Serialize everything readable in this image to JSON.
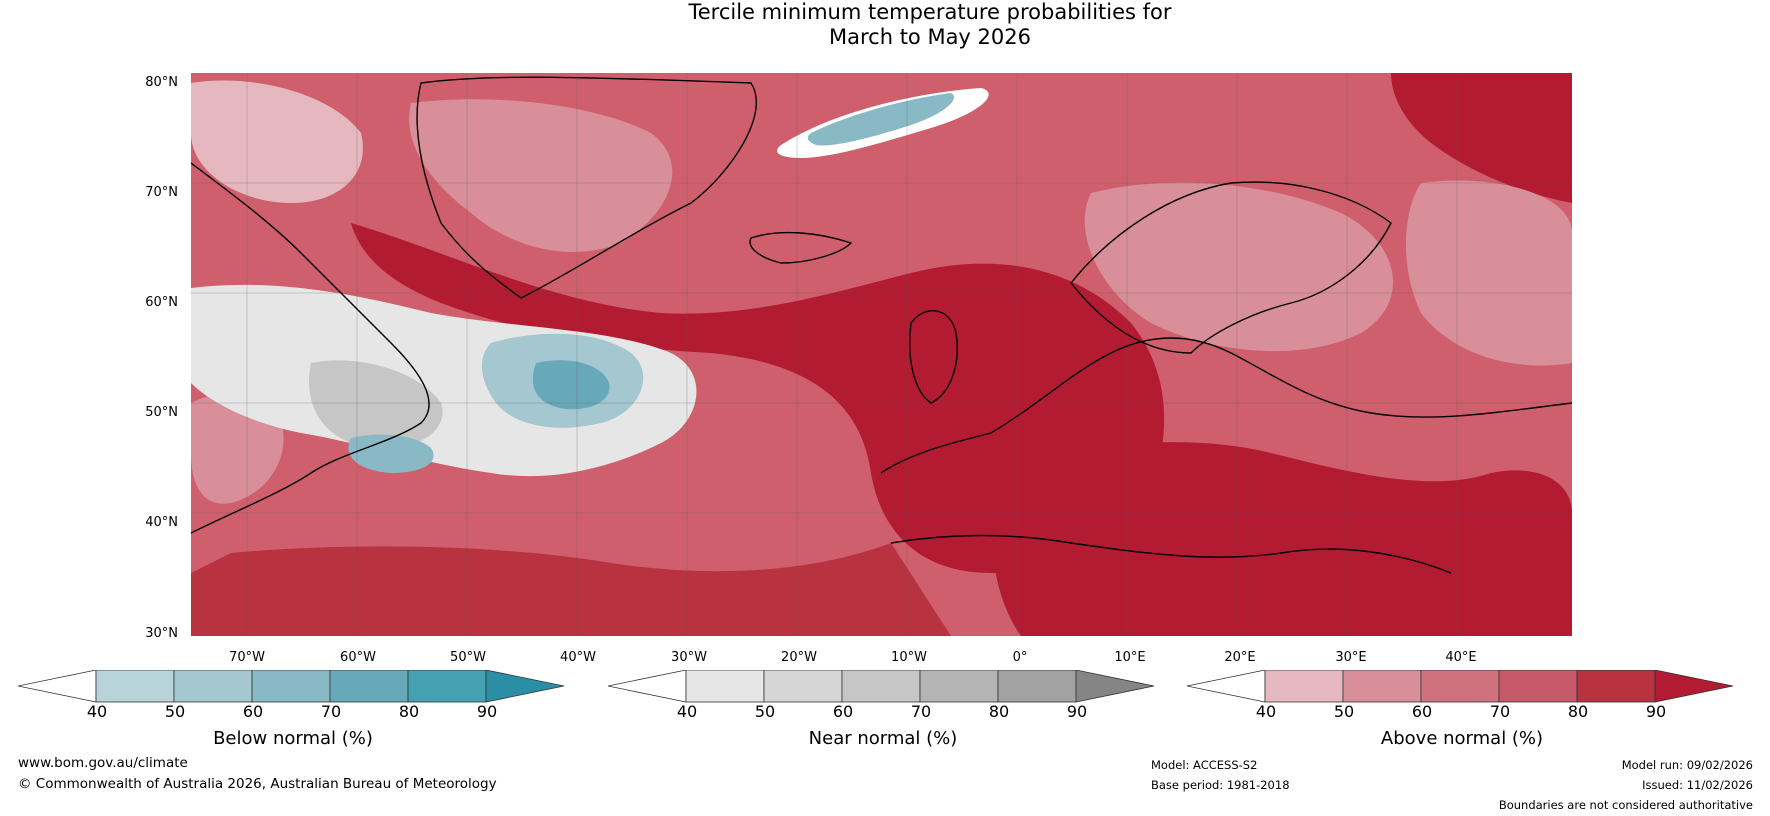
{
  "title": {
    "line1": "Tercile minimum temperature probabilities for",
    "line2": "March to May 2026"
  },
  "map": {
    "lat_labels": [
      "80°N",
      "70°N",
      "60°N",
      "50°N",
      "40°N",
      "30°N"
    ],
    "lon_labels": [
      "70°W",
      "60°W",
      "50°W",
      "40°W",
      "30°W",
      "20°W",
      "10°W",
      "0°",
      "10°E",
      "20°E",
      "30°E",
      "40°E"
    ],
    "background_color": "#cf5f6c",
    "coast_color": "#000000",
    "border_color": "#808080"
  },
  "colorbars": [
    {
      "name": "below",
      "label": "Below normal (%)",
      "ticks": [
        "40",
        "50",
        "60",
        "70",
        "80",
        "90"
      ],
      "colors": [
        "#ffffff",
        "#b9d3db",
        "#a4c7d0",
        "#89b9c5",
        "#68a9b9",
        "#45a0b2",
        "#2a8fa5"
      ]
    },
    {
      "name": "near",
      "label": "Near normal (%)",
      "ticks": [
        "40",
        "50",
        "60",
        "70",
        "80",
        "90"
      ],
      "colors": [
        "#ffffff",
        "#e6e6e6",
        "#d6d6d6",
        "#c6c6c6",
        "#b4b4b4",
        "#a2a2a2",
        "#858585"
      ]
    },
    {
      "name": "above",
      "label": "Above normal (%)",
      "ticks": [
        "40",
        "50",
        "60",
        "70",
        "80",
        "90"
      ],
      "colors": [
        "#ffffff",
        "#e5b8bf",
        "#d88f99",
        "#cf727e",
        "#c65a68",
        "#b8333f",
        "#b31b33"
      ]
    }
  ],
  "footer": {
    "website": "www.bom.gov.au/climate",
    "copyright": "© Commonwealth of Australia 2026, Australian Bureau of Meteorology",
    "model": "Model: ACCESS-S2",
    "base_period": "Base period: 1981-2018",
    "model_run": "Model run: 09/02/2026",
    "issued": "Issued: 11/02/2026",
    "disclaimer": "Boundaries are not considered authoritative"
  }
}
